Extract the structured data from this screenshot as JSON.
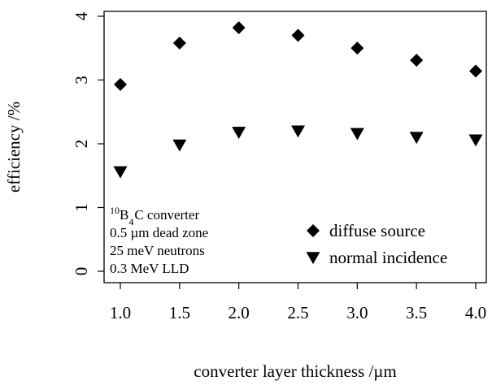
{
  "chart_data": {
    "type": "scatter",
    "title": "",
    "xlabel": "converter layer thickness /µm",
    "ylabel": "efficiency /%",
    "xlim": [
      1.0,
      4.0
    ],
    "ylim": [
      0,
      4
    ],
    "x_ticks": [
      "1.0",
      "1.5",
      "2.0",
      "2.5",
      "3.0",
      "3.5",
      "4.0"
    ],
    "y_ticks": [
      "0",
      "1",
      "2",
      "3",
      "4"
    ],
    "grid": false,
    "legend_position": "bottom-right",
    "series": [
      {
        "name": "diffuse source",
        "marker": "diamond",
        "x": [
          1.0,
          1.5,
          2.0,
          2.5,
          3.0,
          3.5,
          4.0
        ],
        "y": [
          2.93,
          3.58,
          3.82,
          3.7,
          3.5,
          3.31,
          3.14
        ]
      },
      {
        "name": "normal incidence",
        "marker": "triangle-down",
        "x": [
          1.0,
          1.5,
          2.0,
          2.5,
          3.0,
          3.5,
          4.0
        ],
        "y": [
          1.56,
          1.98,
          2.18,
          2.2,
          2.16,
          2.1,
          2.06
        ]
      }
    ],
    "annotation": {
      "line1_sup": "10",
      "line1_b": "B",
      "line1_sub": "4",
      "line1_rest": "C converter",
      "line2": "0.5 µm dead zone",
      "line3": "25 meV neutrons",
      "line4": "0.3 MeV LLD"
    }
  }
}
